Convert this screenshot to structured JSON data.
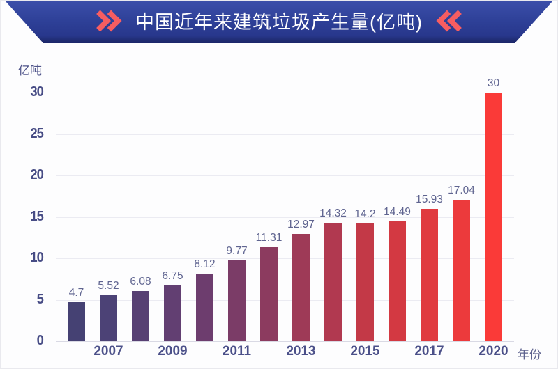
{
  "header": {
    "title": "中国近年来建筑垃圾产生量(亿吨)",
    "left_icon": "double-chevron-right",
    "right_icon": "double-chevron-left",
    "colors": {
      "banner_top": "#3b4ea9",
      "banner_main": "#2d3f96",
      "banner_bottom_edge": "#1c276a",
      "chevron": "#f75d61",
      "title_text": "#ffffff"
    }
  },
  "chart_data": {
    "type": "bar",
    "title": "中国近年来建筑垃圾产生量(亿吨)",
    "ylabel": "亿吨",
    "xlabel": "年份",
    "ylim": [
      0,
      30
    ],
    "y_ticks": [
      0,
      5,
      10,
      15,
      20,
      25,
      30
    ],
    "grid": true,
    "legend_position": "none",
    "bars": [
      {
        "value": 4.7,
        "label": "4.7",
        "color": "#454173"
      },
      {
        "value": 5.52,
        "label": "5.52",
        "color": "#4C4276"
      },
      {
        "value": 6.08,
        "label": "6.08",
        "color": "#574073"
      },
      {
        "value": 6.75,
        "label": "6.75",
        "color": "#623F72"
      },
      {
        "value": 8.12,
        "label": "8.12",
        "color": "#6D3D6E"
      },
      {
        "value": 9.77,
        "label": "9.77",
        "color": "#7B3C67"
      },
      {
        "value": 11.31,
        "label": "11.31",
        "color": "#8C3B5F"
      },
      {
        "value": 12.97,
        "label": "12.97",
        "color": "#9E3A57"
      },
      {
        "value": 14.32,
        "label": "14.32",
        "color": "#B13950"
      },
      {
        "value": 14.2,
        "label": "14.2",
        "color": "#C33947"
      },
      {
        "value": 14.49,
        "label": "14.49",
        "color": "#D33942"
      },
      {
        "value": 15.93,
        "label": "15.93",
        "color": "#E03A3F"
      },
      {
        "value": 17.04,
        "label": "17.04",
        "color": "#EC3A3C"
      },
      {
        "value": 30,
        "label": "30",
        "color": "#FA3A38"
      }
    ],
    "x_ticks": [
      {
        "label": "2007",
        "bar_index": 1
      },
      {
        "label": "2009",
        "bar_index": 3
      },
      {
        "label": "2011",
        "bar_index": 5
      },
      {
        "label": "2013",
        "bar_index": 7
      },
      {
        "label": "2015",
        "bar_index": 9
      },
      {
        "label": "2017",
        "bar_index": 11
      },
      {
        "label": "2020",
        "bar_index": 13
      }
    ],
    "colors": {
      "gridline": "#ebebf2",
      "axis_line": "#d9d9e4",
      "y_tick_text": "#474c85",
      "x_tick_text": "#4b5089",
      "value_label_text": "#5f6490"
    }
  }
}
